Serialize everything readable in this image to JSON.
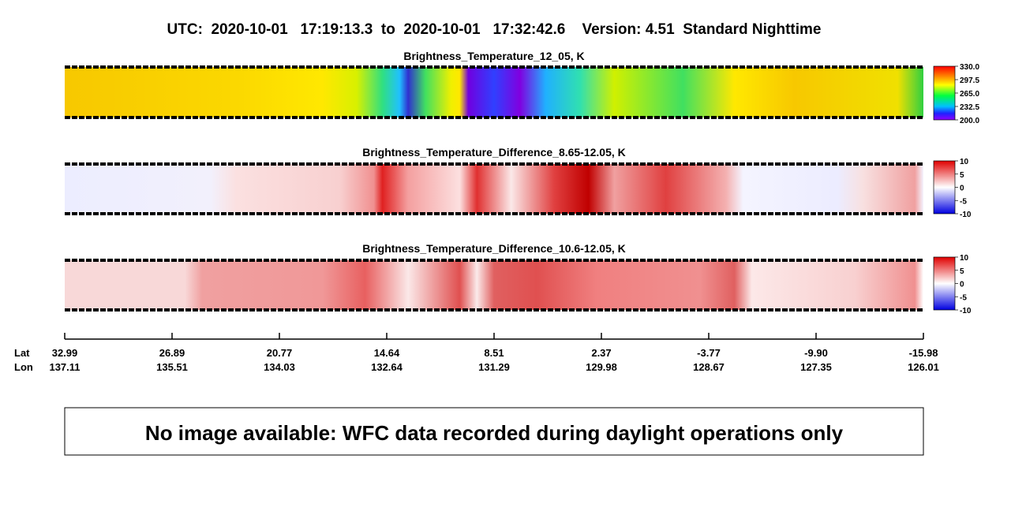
{
  "header": {
    "title": "UTC:  2020-10-01   17:19:13.3  to  2020-10-01   17:32:42.6    Version: 4.51  Standard Nighttime"
  },
  "panels": [
    {
      "title": "Brightness_Temperature_12_05, K",
      "colorbar": [
        "330.0",
        "297.5",
        "265.0",
        "232.5",
        "200.0"
      ]
    },
    {
      "title": "Brightness_Temperature_Difference_8.65-12.05, K",
      "colorbar": [
        "10",
        "5",
        "0",
        "-5",
        "-10"
      ]
    },
    {
      "title": "Brightness_Temperature_Difference_10.6-12.05, K",
      "colorbar": [
        "10",
        "5",
        "0",
        "-5",
        "-10"
      ]
    }
  ],
  "axis": {
    "lat_label": "Lat",
    "lon_label": "Lon",
    "ticks": [
      {
        "lat": "32.99",
        "lon": "137.11"
      },
      {
        "lat": "26.89",
        "lon": "135.51"
      },
      {
        "lat": "20.77",
        "lon": "134.03"
      },
      {
        "lat": "14.64",
        "lon": "132.64"
      },
      {
        "lat": "8.51",
        "lon": "131.29"
      },
      {
        "lat": "2.37",
        "lon": "129.98"
      },
      {
        "lat": "-3.77",
        "lon": "128.67"
      },
      {
        "lat": "-9.90",
        "lon": "127.35"
      },
      {
        "lat": "-15.98",
        "lon": "126.01"
      }
    ]
  },
  "notice": "No image available: WFC data recorded during daylight operations only"
}
